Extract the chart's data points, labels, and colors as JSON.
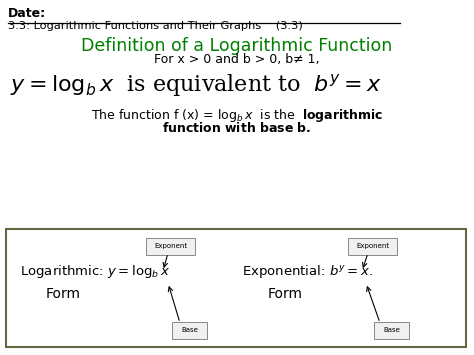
{
  "bg_color": "#ffffff",
  "date_text": "Date:",
  "subtitle_text": "3.3: Logarithmic Functions and Their Graphs    (3.3)",
  "title_text": "Definition of a Logarithmic Function",
  "title_color": "#008000",
  "condition_text": "For x > 0 and b > 0, b≠ 1,",
  "box_bg": "#ffffff",
  "box_border": "#666644",
  "exponent_label": "Exponent",
  "base_label": "Base",
  "log_form_text": "Logarithmic: ",
  "log_form_eq": "$y = \\log_b x$",
  "exp_form_text": "Exponential: ",
  "exp_form_eq": "$\\mathbf{\\mathit{b^y = x}}$.",
  "form_word": "Form"
}
